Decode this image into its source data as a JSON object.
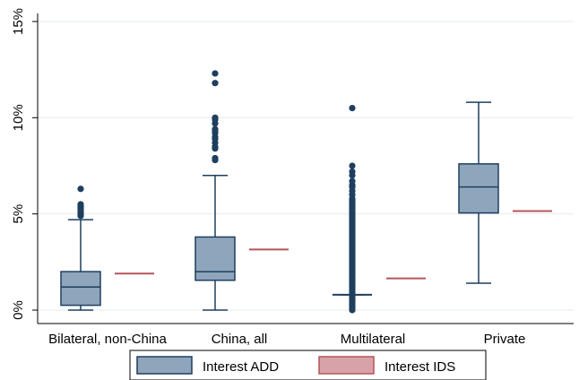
{
  "chart_data": {
    "type": "box",
    "title": "",
    "xlabel": "",
    "ylabel": "",
    "categories": [
      "Bilateral, non-China",
      "China, all",
      "Multilateral",
      "Private"
    ],
    "y_ticks": [
      {
        "value": 0,
        "label": "0%"
      },
      {
        "value": 5,
        "label": "5%"
      },
      {
        "value": 10,
        "label": "10%"
      },
      {
        "value": 15,
        "label": "15%"
      }
    ],
    "ylim": [
      -0.3,
      15.3
    ],
    "grid": true,
    "legend_position": "bottom",
    "series": [
      {
        "name": "Interest ADD",
        "kind": "box",
        "color": "#8fa5bb",
        "edge_color": "#1e3f5e",
        "boxes": [
          {
            "category": "Bilateral, non-China",
            "whisker_low": 0.0,
            "q1": 0.25,
            "median": 1.2,
            "q3": 2.0,
            "whisker_high": 4.7,
            "outliers": [
              4.9,
              5.0,
              5.1,
              5.2,
              5.3,
              5.4,
              5.5,
              6.3
            ]
          },
          {
            "category": "China, all",
            "whisker_low": 0.0,
            "q1": 1.55,
            "median": 2.0,
            "q3": 3.8,
            "whisker_high": 7.0,
            "outliers": [
              7.8,
              7.9,
              8.4,
              8.5,
              8.7,
              8.9,
              9.0,
              9.2,
              9.3,
              9.4,
              9.7,
              9.9,
              10.0,
              11.8,
              12.3
            ]
          },
          {
            "category": "Multilateral",
            "whisker_low": 0.8,
            "q1": 0.8,
            "median": 0.8,
            "q3": 0.8,
            "whisker_high": 0.8,
            "outliers": [
              0.0,
              0.1,
              0.2,
              0.3,
              0.4,
              0.5,
              0.6,
              0.7,
              0.9,
              1.0,
              1.1,
              1.2,
              1.3,
              1.4,
              1.5,
              1.6,
              1.7,
              1.8,
              1.9,
              2.0,
              2.1,
              2.2,
              2.3,
              2.4,
              2.5,
              2.6,
              2.7,
              2.8,
              2.9,
              3.0,
              3.1,
              3.2,
              3.3,
              3.4,
              3.5,
              3.6,
              3.7,
              3.8,
              3.9,
              4.0,
              4.1,
              4.2,
              4.3,
              4.4,
              4.5,
              4.6,
              4.7,
              4.8,
              4.9,
              5.0,
              5.1,
              5.2,
              5.3,
              5.4,
              5.5,
              5.6,
              5.7,
              5.8,
              6.0,
              6.2,
              6.4,
              6.5,
              6.7,
              7.0,
              7.2,
              7.5,
              10.5
            ]
          },
          {
            "category": "Private",
            "whisker_low": 1.4,
            "q1": 5.05,
            "median": 6.4,
            "q3": 7.6,
            "whisker_high": 10.8,
            "outliers": []
          }
        ]
      },
      {
        "name": "Interest IDS",
        "kind": "mean-line",
        "color": "#b5545c",
        "legend_fill": "#d8a3a8",
        "values": [
          1.9,
          3.15,
          1.65,
          5.15
        ]
      }
    ]
  }
}
